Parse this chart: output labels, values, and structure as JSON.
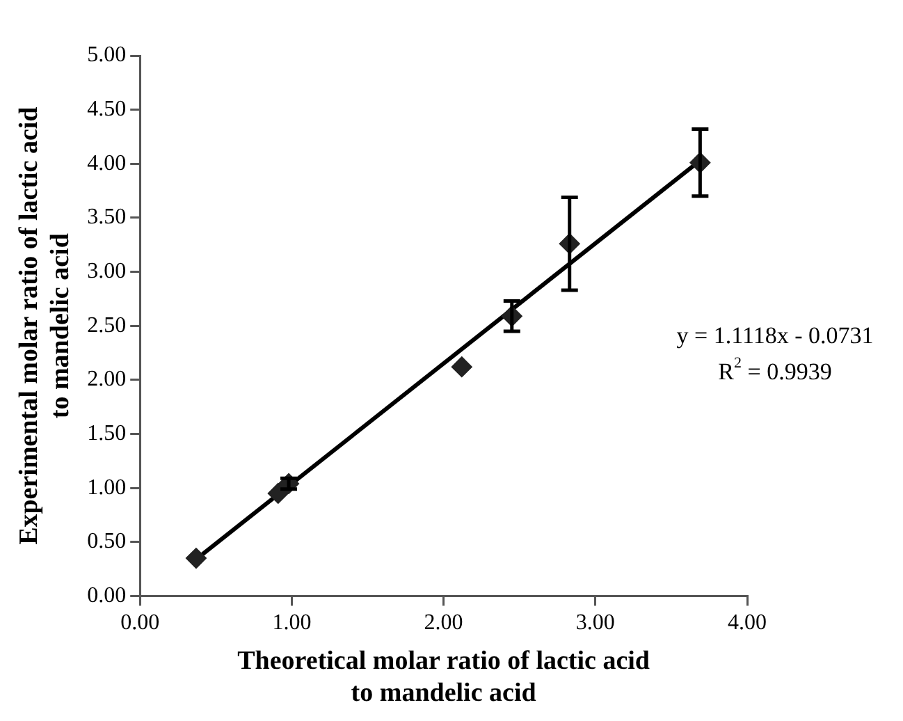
{
  "chart_data": {
    "type": "scatter",
    "xlabel": "Theoretical molar ratio of lactic acid\nto mandelic acid",
    "ylabel": "Experimental molar ratio of lactic acid\nto mandelic acid",
    "marker": "diamond",
    "grid": false,
    "legend": false,
    "xlim": [
      0,
      4
    ],
    "xticks": [
      {
        "value": 0,
        "label": "0.00"
      },
      {
        "value": 1,
        "label": "1.00"
      },
      {
        "value": 2,
        "label": "2.00"
      },
      {
        "value": 3,
        "label": "3.00"
      },
      {
        "value": 4,
        "label": "4.00"
      }
    ],
    "ylim": [
      0,
      5
    ],
    "yticks": [
      {
        "value": 0,
        "label": "0.00"
      },
      {
        "value": 0.5,
        "label": "0.50"
      },
      {
        "value": 1,
        "label": "1.00"
      },
      {
        "value": 1.5,
        "label": "1.50"
      },
      {
        "value": 2,
        "label": "2.00"
      },
      {
        "value": 2.5,
        "label": "2.50"
      },
      {
        "value": 3,
        "label": "3.00"
      },
      {
        "value": 3.5,
        "label": "3.50"
      },
      {
        "value": 4,
        "label": "4.00"
      },
      {
        "value": 4.5,
        "label": "4.50"
      },
      {
        "value": 5,
        "label": "5.00"
      }
    ],
    "series": [
      {
        "color": "#222222",
        "x": [
          0.37,
          0.91,
          0.98,
          2.12,
          2.45,
          2.83,
          3.69
        ],
        "values": [
          0.35,
          0.95,
          1.04,
          2.12,
          2.59,
          3.26,
          4.01
        ],
        "errors": [
          null,
          null,
          0.05,
          null,
          0.14,
          0.43,
          0.31
        ]
      },
      {
        "type": "line",
        "color": "#000000",
        "marker": "none",
        "x": [
          0.37,
          3.69
        ],
        "values": [
          0.34,
          4.03
        ]
      }
    ],
    "annotations": [
      "y = 1.1118x - 0.0731",
      "R$^{2}$ = 0.9939"
    ]
  }
}
